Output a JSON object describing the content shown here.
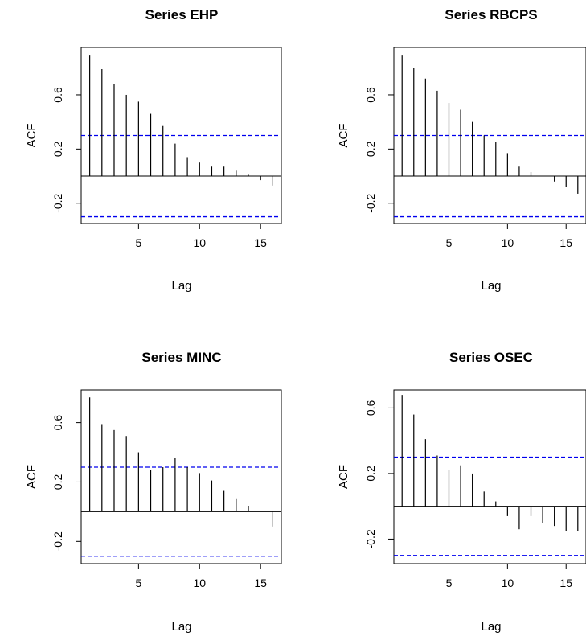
{
  "chart_data": [
    {
      "type": "bar",
      "title": "Series EHP",
      "xlabel": "Lag",
      "ylabel": "ACF",
      "xlim": [
        0.3,
        16.7
      ],
      "ylim": [
        -0.35,
        0.95
      ],
      "x_ticks": [
        "5",
        "10",
        "15"
      ],
      "y_ticks": [
        "-0.2",
        "0.2",
        "0.6"
      ],
      "confidence_bound": 0.3,
      "lags": [
        1,
        2,
        3,
        4,
        5,
        6,
        7,
        8,
        9,
        10,
        11,
        12,
        13,
        14,
        15,
        16
      ],
      "values": [
        0.89,
        0.79,
        0.68,
        0.6,
        0.55,
        0.46,
        0.37,
        0.24,
        0.14,
        0.1,
        0.07,
        0.07,
        0.04,
        0.01,
        -0.03,
        -0.07
      ],
      "bound_color": "#0000ee"
    },
    {
      "type": "bar",
      "title": "Series RBCPS",
      "xlabel": "Lag",
      "ylabel": "ACF",
      "xlim": [
        0.3,
        16.7
      ],
      "ylim": [
        -0.35,
        0.95
      ],
      "x_ticks": [
        "5",
        "10",
        "15"
      ],
      "y_ticks": [
        "-0.2",
        "0.2",
        "0.6"
      ],
      "confidence_bound": 0.3,
      "lags": [
        1,
        2,
        3,
        4,
        5,
        6,
        7,
        8,
        9,
        10,
        11,
        12,
        13,
        14,
        15,
        16
      ],
      "values": [
        0.89,
        0.8,
        0.72,
        0.63,
        0.54,
        0.49,
        0.4,
        0.3,
        0.25,
        0.17,
        0.07,
        0.03,
        0.0,
        -0.04,
        -0.08,
        -0.13
      ],
      "bound_color": "#0000ee"
    },
    {
      "type": "bar",
      "title": "Series MINC",
      "xlabel": "Lag",
      "ylabel": "ACF",
      "xlim": [
        0.3,
        16.7
      ],
      "ylim": [
        -0.35,
        0.82
      ],
      "x_ticks": [
        "5",
        "10",
        "15"
      ],
      "y_ticks": [
        "-0.2",
        "0.2",
        "0.6"
      ],
      "confidence_bound": 0.3,
      "lags": [
        1,
        2,
        3,
        4,
        5,
        6,
        7,
        8,
        9,
        10,
        11,
        12,
        13,
        14,
        15,
        16
      ],
      "values": [
        0.77,
        0.59,
        0.55,
        0.51,
        0.4,
        0.28,
        0.3,
        0.36,
        0.3,
        0.26,
        0.21,
        0.14,
        0.09,
        0.04,
        0.0,
        -0.1
      ],
      "bound_color": "#0000ee"
    },
    {
      "type": "bar",
      "title": "Series OSEC",
      "xlabel": "Lag",
      "ylabel": "ACF",
      "xlim": [
        0.3,
        16.7
      ],
      "ylim": [
        -0.35,
        0.71
      ],
      "x_ticks": [
        "5",
        "10",
        "15"
      ],
      "y_ticks": [
        "-0.2",
        "0.2",
        "0.6"
      ],
      "confidence_bound": 0.3,
      "lags": [
        1,
        2,
        3,
        4,
        5,
        6,
        7,
        8,
        9,
        10,
        11,
        12,
        13,
        14,
        15,
        16
      ],
      "values": [
        0.68,
        0.56,
        0.41,
        0.31,
        0.22,
        0.25,
        0.2,
        0.09,
        0.03,
        -0.06,
        -0.14,
        -0.06,
        -0.1,
        -0.12,
        -0.15,
        -0.15
      ],
      "bound_color": "#0000ee"
    }
  ]
}
